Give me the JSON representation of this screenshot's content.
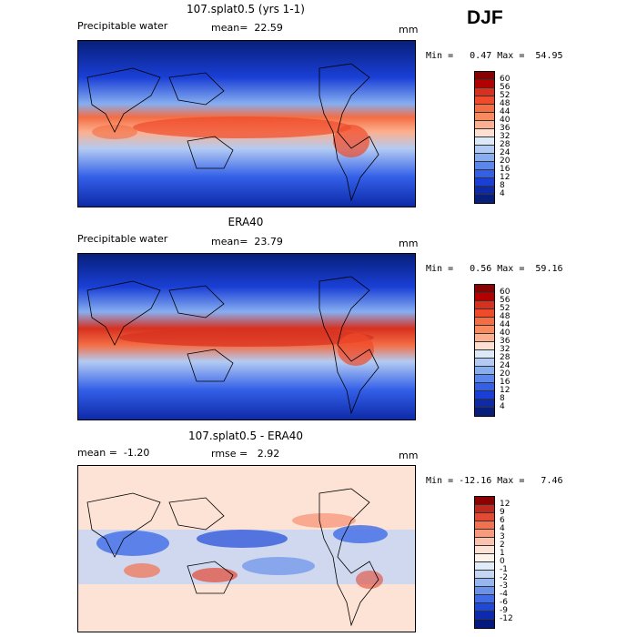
{
  "season": "DJF",
  "panels": [
    {
      "title": "107.splat0.5 (yrs 1-1)",
      "left_label": "Precipitable water",
      "stat1": "mean=  22.59",
      "stat2": "",
      "units": "mm",
      "min_max": "Min =   0.47 Max =  54.95",
      "legend_levels": [
        "60",
        "56",
        "52",
        "48",
        "44",
        "40",
        "36",
        "32",
        "28",
        "24",
        "20",
        "16",
        "12",
        "8",
        "4"
      ],
      "legend_colors": [
        "#8b0000",
        "#b30000",
        "#d7301f",
        "#ef4a2a",
        "#f46d43",
        "#f88a5f",
        "#fcb08f",
        "#fde0d2",
        "#dce9f9",
        "#b3cbf2",
        "#87aef0",
        "#5b86ec",
        "#3460e8",
        "#1a3fd6",
        "#0d2aa8",
        "#071f7a"
      ]
    },
    {
      "title": "ERA40",
      "left_label": "Precipitable water",
      "stat1": "mean=  23.79",
      "stat2": "",
      "units": "mm",
      "min_max": "Min =   0.56 Max =  59.16",
      "legend_levels": [
        "60",
        "56",
        "52",
        "48",
        "44",
        "40",
        "36",
        "32",
        "28",
        "24",
        "20",
        "16",
        "12",
        "8",
        "4"
      ],
      "legend_colors": [
        "#8b0000",
        "#b30000",
        "#d7301f",
        "#ef4a2a",
        "#f46d43",
        "#f88a5f",
        "#fcb08f",
        "#fde0d2",
        "#dce9f9",
        "#b3cbf2",
        "#87aef0",
        "#5b86ec",
        "#3460e8",
        "#1a3fd6",
        "#0d2aa8",
        "#071f7a"
      ]
    },
    {
      "title": "107.splat0.5 - ERA40",
      "left_label": "mean =  -1.20",
      "stat1": "rmse =   2.92",
      "stat2": "",
      "units": "mm",
      "min_max": "Min = -12.16 Max =   7.46",
      "legend_levels": [
        "12",
        "9",
        "6",
        "4",
        "3",
        "2",
        "1",
        "0",
        "-1",
        "-2",
        "-3",
        "-4",
        "-6",
        "-9",
        "-12"
      ],
      "legend_colors": [
        "#8b0000",
        "#c0281e",
        "#e34a33",
        "#f4714f",
        "#f79b7d",
        "#fbc3ad",
        "#fde2d6",
        "#fff3ea",
        "#e1ecfa",
        "#c3d6f4",
        "#95b6ee",
        "#6a92ea",
        "#3f6ce6",
        "#1e48d8",
        "#0c2ab0",
        "#051a80"
      ]
    }
  ]
}
